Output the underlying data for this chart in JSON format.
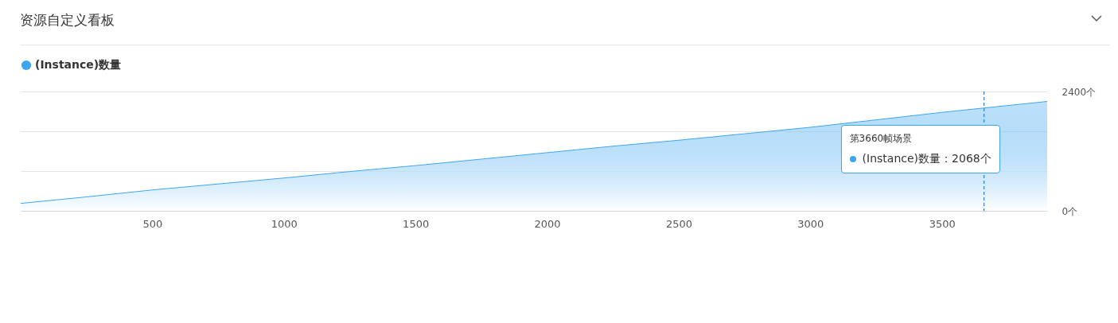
{
  "chart_data": {
    "type": "area",
    "title": "资源自定义看板",
    "x": [
      0,
      250,
      500,
      750,
      1000,
      1250,
      1500,
      1750,
      2000,
      2250,
      2500,
      2750,
      3000,
      3250,
      3500,
      3660,
      3900
    ],
    "series": [
      {
        "name": "(Instance)数量",
        "color": "#3ea6f0",
        "values": [
          150,
          280,
          420,
          540,
          660,
          790,
          910,
          1040,
          1170,
          1300,
          1420,
          1550,
          1680,
          1830,
          1980,
          2068,
          2200
        ]
      }
    ],
    "xlim": [
      0,
      3900
    ],
    "xticks": [
      500,
      1000,
      1500,
      2000,
      2500,
      3000,
      3500
    ],
    "ylim": [
      0,
      2400
    ],
    "yticks": [
      {
        "value": 0,
        "label": "0个"
      },
      {
        "value": 800,
        "label": null
      },
      {
        "value": 1600,
        "label": null
      },
      {
        "value": 2400,
        "label": "2400个"
      }
    ],
    "grid": "y",
    "legend": "top left",
    "ref_lines": [
      {
        "axis": "x",
        "value": 3660,
        "color": "#2f7fd4",
        "line_style": "dashed"
      }
    ],
    "annotations": [
      "第3660帧场景",
      "(Instance)数量：2068个"
    ]
  }
}
